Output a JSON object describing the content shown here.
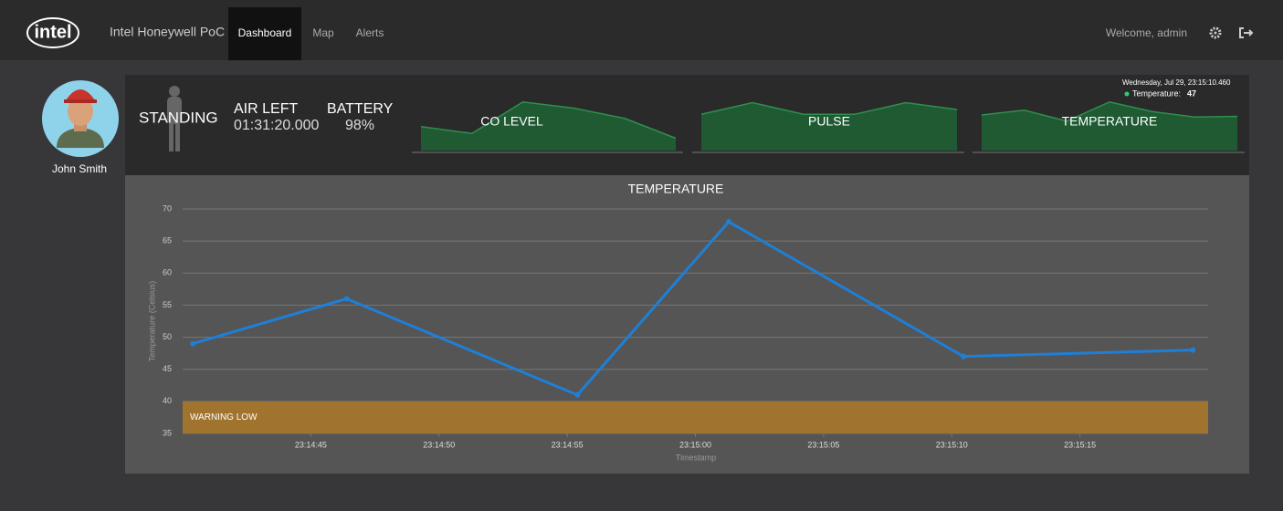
{
  "navbar": {
    "logo": "intel",
    "brand": "Intel Honeywell PoC",
    "links": [
      "Dashboard",
      "Map",
      "Alerts"
    ],
    "welcome": "Welcome, admin"
  },
  "profile": {
    "name": "John Smith"
  },
  "status": {
    "posture": "STANDING",
    "air_left_label": "AIR LEFT",
    "air_left": "01:31:20.000",
    "battery_label": "BATTERY",
    "battery": "98%"
  },
  "sparklines": [
    {
      "title": "CO LEVEL",
      "values": [
        35,
        25,
        71,
        62,
        47,
        18
      ]
    },
    {
      "title": "PULSE",
      "values": [
        53,
        70,
        53,
        53,
        70,
        60
      ]
    },
    {
      "title": "TEMPERATURE",
      "values": [
        52,
        59,
        43,
        71,
        57,
        49,
        50
      ]
    }
  ],
  "tooltip": {
    "date": "Wednesday, Jul 29, 23:15:10.460",
    "label": "Temperature:",
    "value": 47
  },
  "chart_data": {
    "type": "line",
    "title": "TEMPERATURE",
    "y_label": "Temperature (Celsius)",
    "x_label": "Timestamp",
    "x": [
      "23:14:40.4",
      "23:14:46.4",
      "23:14:55.4",
      "23:15:01.3",
      "23:15:10.46",
      "23:15:19.4"
    ],
    "values": [
      49,
      56,
      41,
      68,
      47,
      48
    ],
    "color": "#1f7fd6",
    "xlim": [
      "23:14:40",
      "23:15:20"
    ],
    "xticks": [
      "23:14:45",
      "23:14:50",
      "23:14:55",
      "23:15:00",
      "23:15:05",
      "23:15:10",
      "23:15:15"
    ],
    "ylim": [
      35,
      70
    ],
    "yticks": [
      35,
      40,
      45,
      50,
      55,
      60,
      65,
      70
    ],
    "grid": true,
    "band": {
      "label": "WARNING LOW",
      "from": 35,
      "to": 40,
      "color": "#a0742f"
    }
  }
}
